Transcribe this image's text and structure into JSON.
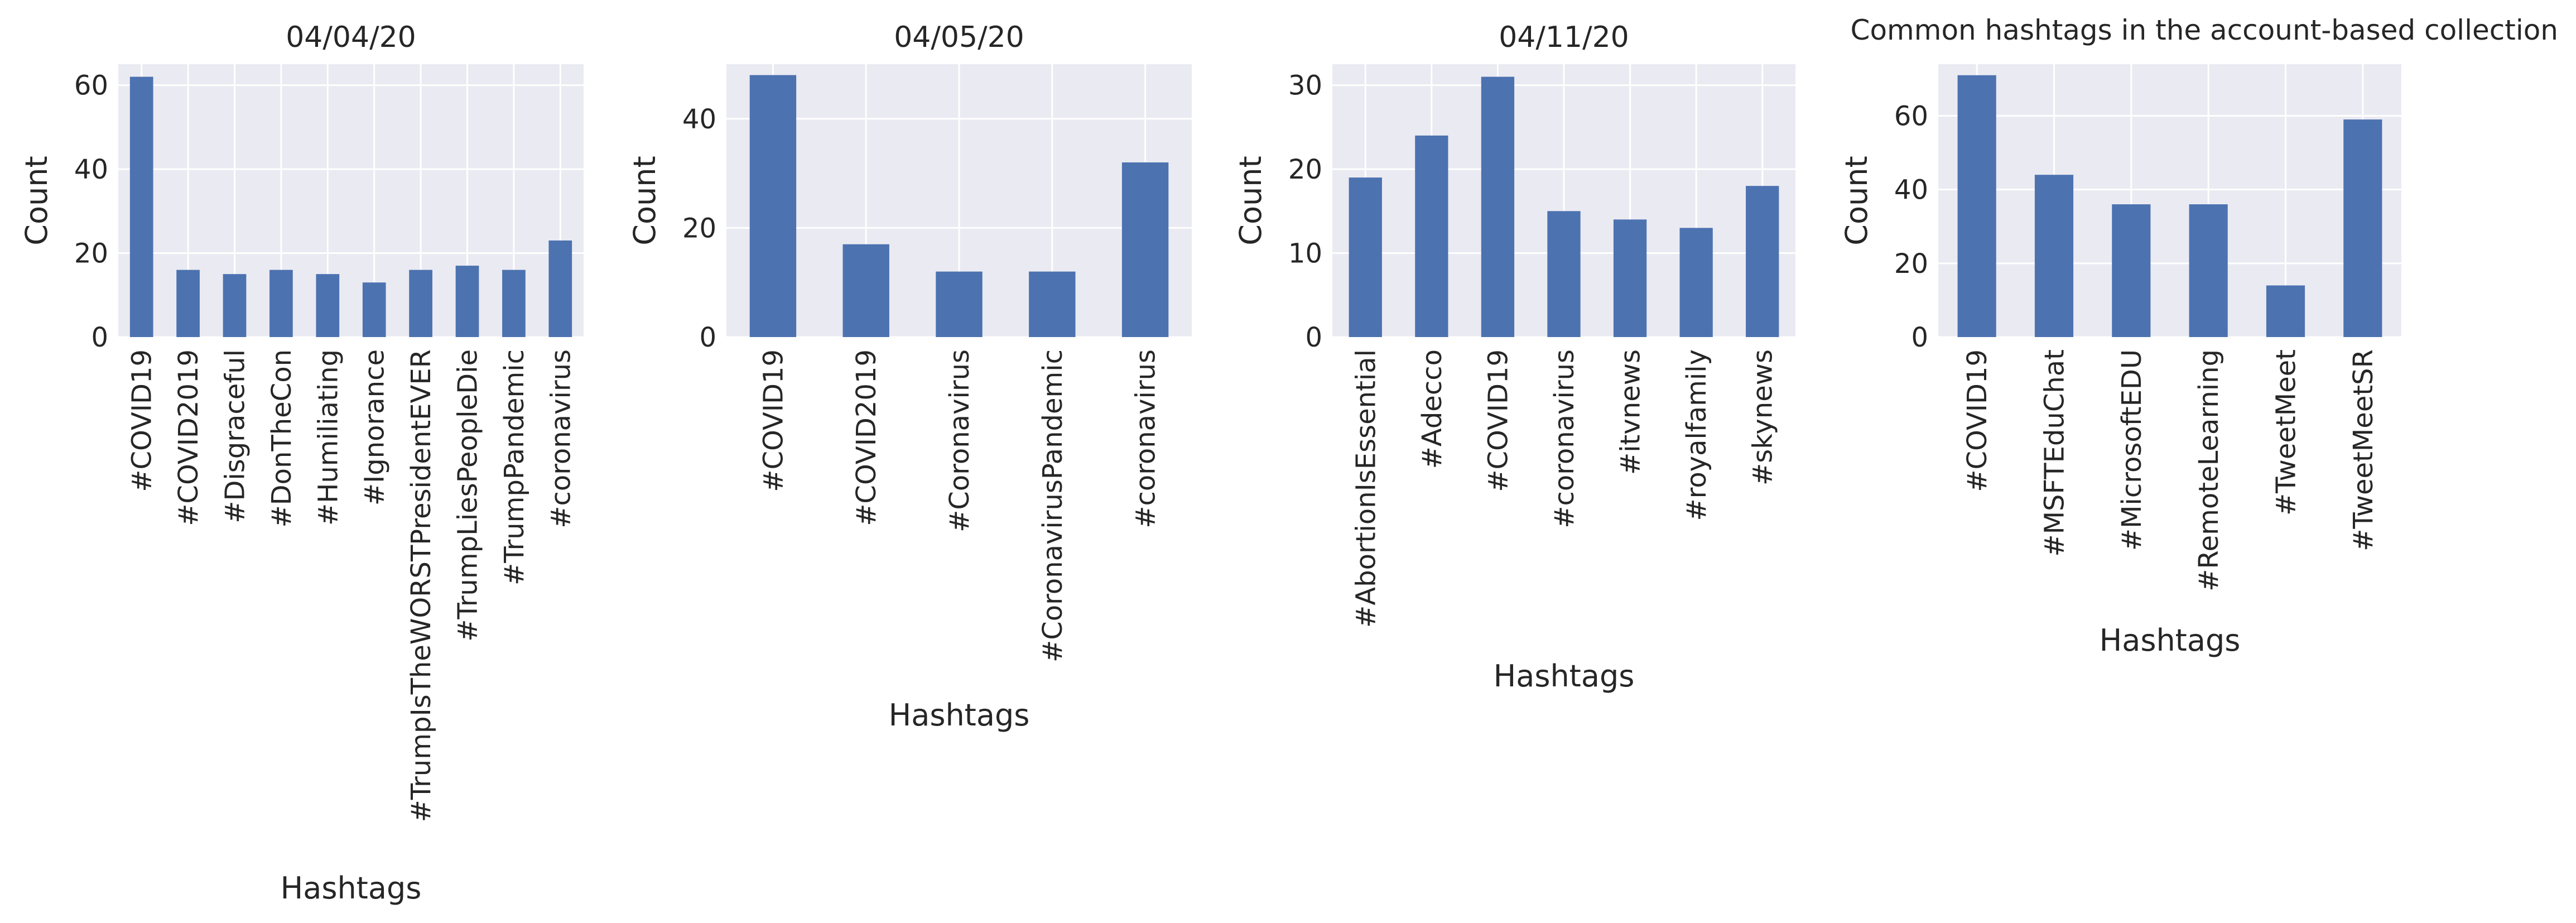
{
  "figure": {
    "suptitle": "Common hashtags in the account-based collection",
    "colors": {
      "bar": "#4C72B0",
      "plot_bg": "#EAEAF2",
      "grid": "#FFFFFF",
      "text": "#262626"
    }
  },
  "chart_data": [
    {
      "type": "bar",
      "title": "04/04/20",
      "xlabel": "Hashtags",
      "ylabel": "Count",
      "grid": true,
      "ylim": [
        0,
        65
      ],
      "yticks": [
        0,
        20,
        40,
        60
      ],
      "categories": [
        "#COVID19",
        "#COVID2019",
        "#Disgraceful",
        "#DonTheCon",
        "#Humiliating",
        "#Ignorance",
        "#TrumpIsTheWORSTPresidentEVER",
        "#TrumpLiesPeopleDie",
        "#TrumpPandemic",
        "#coronavirus"
      ],
      "values": [
        62,
        16,
        15,
        16,
        15,
        13,
        16,
        17,
        16,
        23
      ]
    },
    {
      "type": "bar",
      "title": "04/05/20",
      "xlabel": "Hashtags",
      "ylabel": "Count",
      "grid": true,
      "ylim": [
        0,
        50
      ],
      "yticks": [
        0,
        20,
        40
      ],
      "categories": [
        "#COVID19",
        "#COVID2019",
        "#Coronavirus",
        "#CoronavirusPandemic",
        "#coronavirus"
      ],
      "values": [
        48,
        17,
        12,
        12,
        32
      ]
    },
    {
      "type": "bar",
      "title": "04/11/20",
      "xlabel": "Hashtags",
      "ylabel": "Count",
      "grid": true,
      "ylim": [
        0,
        32.5
      ],
      "yticks": [
        0,
        10,
        20,
        30
      ],
      "categories": [
        "#AbortionIsEssential",
        "#Adecco",
        "#COVID19",
        "#coronavirus",
        "#itvnews",
        "#royalfamily",
        "#skynews"
      ],
      "values": [
        19,
        24,
        31,
        15,
        14,
        13,
        18
      ]
    },
    {
      "type": "bar",
      "title": "",
      "xlabel": "Hashtags",
      "ylabel": "Count",
      "grid": true,
      "ylim": [
        0,
        74
      ],
      "yticks": [
        0,
        20,
        40,
        60
      ],
      "categories": [
        "#COVID19",
        "#MSFTEduChat",
        "#MicrosoftEDU",
        "#RemoteLearning",
        "#TweetMeet",
        "#TweetMeetSR"
      ],
      "values": [
        71,
        44,
        36,
        36,
        14,
        59
      ]
    }
  ]
}
